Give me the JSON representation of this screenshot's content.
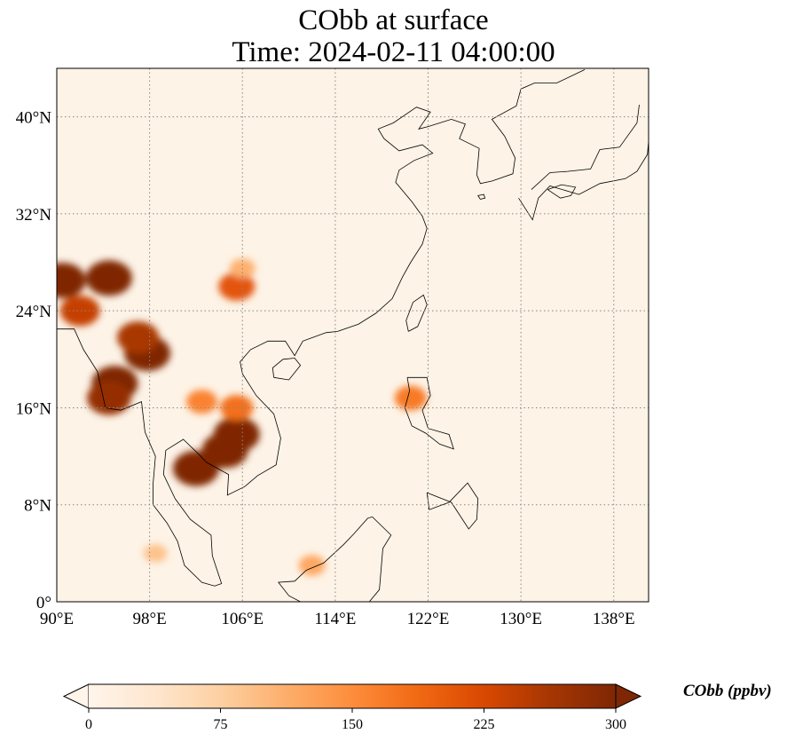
{
  "title": {
    "line1": "CObb at surface",
    "line2": "Time: 2024-02-11 04:00:00"
  },
  "map": {
    "extent": {
      "lon": [
        90,
        141
      ],
      "lat": [
        0,
        44
      ]
    },
    "x_ticks": [
      {
        "value": 90,
        "label": "90°E"
      },
      {
        "value": 98,
        "label": "98°E"
      },
      {
        "value": 106,
        "label": "106°E"
      },
      {
        "value": 114,
        "label": "114°E"
      },
      {
        "value": 122,
        "label": "122°E"
      },
      {
        "value": 130,
        "label": "130°E"
      },
      {
        "value": 138,
        "label": "138°E"
      }
    ],
    "y_ticks": [
      {
        "value": 0,
        "label": "0°"
      },
      {
        "value": 8,
        "label": "8°N"
      },
      {
        "value": 16,
        "label": "16°N"
      },
      {
        "value": 24,
        "label": "24°N"
      },
      {
        "value": 32,
        "label": "32°N"
      },
      {
        "value": 40,
        "label": "40°N"
      }
    ],
    "gridlines": "dotted",
    "hotspots": [
      {
        "lon": 104.5,
        "lat": 12.5,
        "value": 300
      },
      {
        "lon": 102.0,
        "lat": 11.0,
        "value": 300
      },
      {
        "lon": 105.5,
        "lat": 13.8,
        "value": 300
      },
      {
        "lon": 95.0,
        "lat": 18.0,
        "value": 300
      },
      {
        "lon": 97.8,
        "lat": 20.5,
        "value": 300
      },
      {
        "lon": 97.0,
        "lat": 21.8,
        "value": 260
      },
      {
        "lon": 94.5,
        "lat": 16.8,
        "value": 280
      },
      {
        "lon": 90.5,
        "lat": 26.5,
        "value": 300
      },
      {
        "lon": 94.5,
        "lat": 26.7,
        "value": 300
      },
      {
        "lon": 92.0,
        "lat": 24.0,
        "value": 240
      },
      {
        "lon": 102.5,
        "lat": 16.5,
        "value": 160
      },
      {
        "lon": 105.5,
        "lat": 16.0,
        "value": 180
      },
      {
        "lon": 105.5,
        "lat": 26.0,
        "value": 210
      },
      {
        "lon": 106.0,
        "lat": 27.5,
        "value": 110
      },
      {
        "lon": 120.5,
        "lat": 16.8,
        "value": 170
      },
      {
        "lon": 112.0,
        "lat": 3.0,
        "value": 120
      },
      {
        "lon": 98.5,
        "lat": 4.0,
        "value": 90
      }
    ]
  },
  "colorbar": {
    "label": "CObb (ppbv)",
    "min": 0,
    "max": 300,
    "ticks": [
      {
        "value": 0,
        "label": "0"
      },
      {
        "value": 75,
        "label": "75"
      },
      {
        "value": 150,
        "label": "150"
      },
      {
        "value": 225,
        "label": "225"
      },
      {
        "value": 300,
        "label": "300"
      }
    ],
    "colors": [
      "#fff5eb",
      "#fee6ce",
      "#fdd0a2",
      "#fdae6b",
      "#fd8d3c",
      "#f16913",
      "#d94801",
      "#a63603",
      "#7f2704"
    ],
    "extend": "both"
  }
}
